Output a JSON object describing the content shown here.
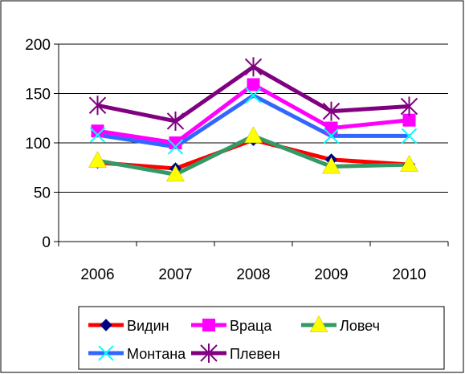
{
  "chart_data": {
    "type": "line",
    "title": "",
    "xlabel": "",
    "ylabel": "",
    "categories": [
      "2006",
      "2007",
      "2008",
      "2009",
      "2010"
    ],
    "ylim": [
      0,
      200
    ],
    "yticks": [
      "0",
      "50",
      "100",
      "150",
      "200"
    ],
    "grid": "horizontal",
    "legend": "bottom",
    "series": [
      {
        "name": "Видин",
        "values": [
          80,
          74,
          103,
          83,
          78
        ],
        "line_color": "#ff0000",
        "marker_color": "#000080",
        "marker": "diamond"
      },
      {
        "name": "Враца",
        "values": [
          112,
          100,
          159,
          115,
          123
        ],
        "line_color": "#ff00ff",
        "marker_color": "#ff00ff",
        "marker": "square"
      },
      {
        "name": "Ловеч",
        "values": [
          82,
          68,
          107,
          76,
          78
        ],
        "line_color": "#339966",
        "marker_color": "#ffff00",
        "marker": "triangle"
      },
      {
        "name": "Монтана",
        "values": [
          108,
          96,
          148,
          107,
          107
        ],
        "line_color": "#3366ff",
        "marker_color": "#00ffff",
        "marker": "x"
      },
      {
        "name": "Плевен",
        "values": [
          138,
          122,
          177,
          132,
          137
        ],
        "line_color": "#800080",
        "marker_color": "#800080",
        "marker": "star"
      }
    ]
  }
}
